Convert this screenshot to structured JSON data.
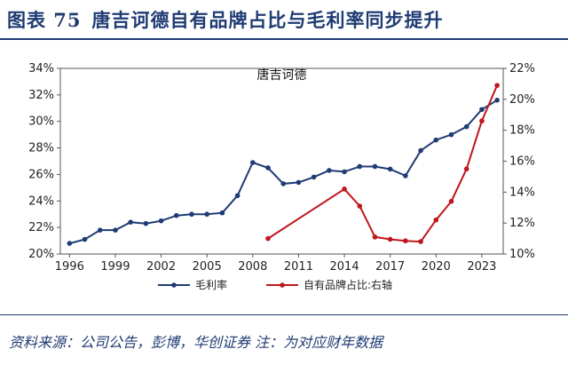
{
  "header": {
    "figure_label": "图表 75",
    "title": "唐吉诃德自有品牌占比与毛利率同步提升"
  },
  "source": "资料来源：公司公告，彭博，华创证券 注：为对应财年数据",
  "colors": {
    "title": "#1f3b73",
    "series_left": "#1f3b73",
    "series_right": "#c0161d"
  },
  "chart_data": {
    "type": "line",
    "title": "唐吉诃德",
    "x_tick_labels": [
      "1996",
      "1999",
      "2002",
      "2005",
      "2008",
      "2011",
      "2014",
      "2017",
      "2020",
      "2023"
    ],
    "xlim": [
      1995.4,
      2024.4
    ],
    "y_left": {
      "ylim": [
        20,
        34
      ],
      "ticks": [
        "20%",
        "22%",
        "24%",
        "26%",
        "28%",
        "30%",
        "32%",
        "34%"
      ]
    },
    "y_right": {
      "ylim": [
        10,
        22
      ],
      "ticks": [
        "10%",
        "12%",
        "14%",
        "16%",
        "18%",
        "20%",
        "22%"
      ]
    },
    "legend_position": "bottom",
    "series": [
      {
        "name": "毛利率",
        "axis": "left",
        "x": [
          1996,
          1997,
          1998,
          1999,
          2000,
          2001,
          2002,
          2003,
          2004,
          2005,
          2006,
          2007,
          2008,
          2009,
          2010,
          2011,
          2012,
          2013,
          2014,
          2015,
          2016,
          2017,
          2018,
          2019,
          2020,
          2021,
          2022,
          2023,
          2024
        ],
        "values": [
          20.8,
          21.1,
          21.8,
          21.8,
          22.4,
          22.3,
          22.5,
          22.9,
          23.0,
          23.0,
          23.1,
          24.4,
          26.9,
          26.5,
          25.3,
          25.4,
          25.8,
          26.3,
          26.2,
          26.6,
          26.6,
          26.4,
          25.9,
          27.8,
          28.6,
          29.0,
          29.6,
          30.9,
          31.6
        ]
      },
      {
        "name": "自有品牌占比:右轴",
        "axis": "right",
        "x": [
          2009,
          2014,
          2015,
          2016,
          2017,
          2018,
          2019,
          2020,
          2021,
          2022,
          2023,
          2024
        ],
        "values": [
          11.0,
          14.2,
          13.1,
          11.1,
          10.95,
          10.85,
          10.8,
          12.2,
          13.4,
          15.5,
          18.6,
          20.9
        ]
      }
    ]
  }
}
